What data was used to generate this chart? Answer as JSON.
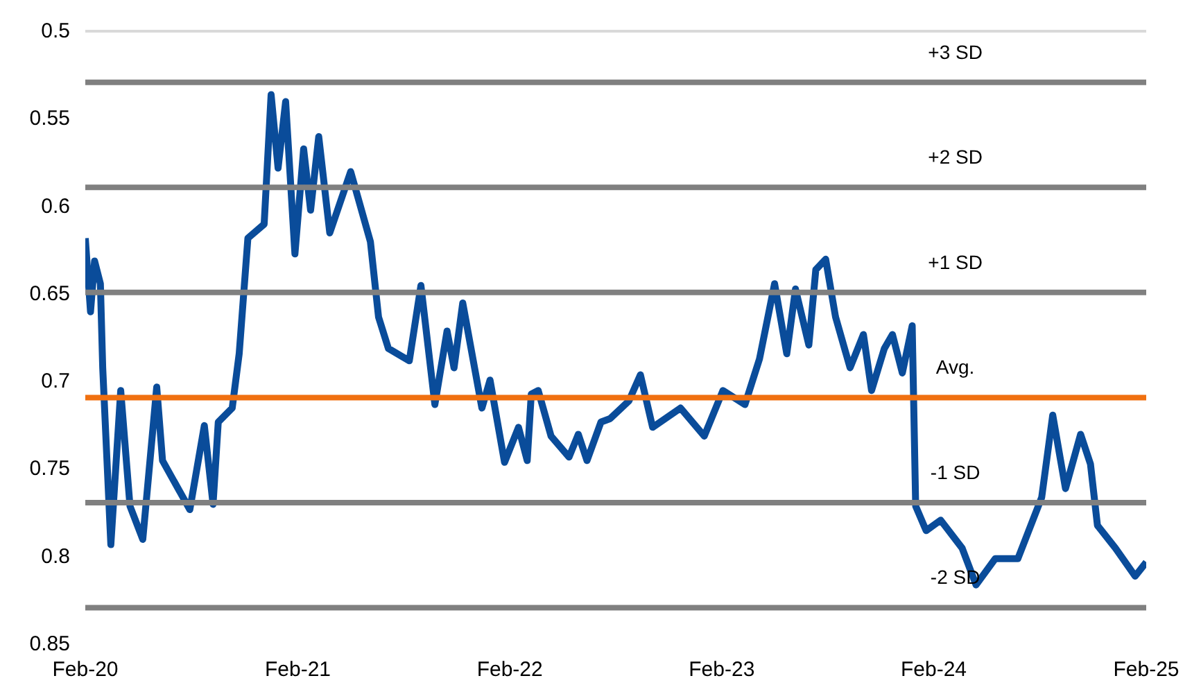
{
  "chart_data": {
    "type": "line",
    "x": [
      "2020-02-01",
      "2020-02-10",
      "2020-02-17",
      "2020-02-27",
      "2020-03-02",
      "2020-03-16",
      "2020-04-02",
      "2020-04-18",
      "2020-05-10",
      "2020-06-03",
      "2020-06-13",
      "2020-07-30",
      "2020-08-24",
      "2020-09-08",
      "2020-09-17",
      "2020-10-11",
      "2020-10-23",
      "2020-11-07",
      "2020-12-05",
      "2020-12-17",
      "2020-12-29",
      "2021-01-11",
      "2021-01-27",
      "2021-02-11",
      "2021-02-23",
      "2021-03-09",
      "2021-03-28",
      "2021-05-03",
      "2021-06-06",
      "2021-06-20",
      "2021-07-07",
      "2021-08-12",
      "2021-09-01",
      "2021-09-25",
      "2021-10-16",
      "2021-10-28",
      "2021-11-12",
      "2021-12-15",
      "2021-12-29",
      "2022-01-23",
      "2022-02-16",
      "2022-03-03",
      "2022-03-10",
      "2022-03-22",
      "2022-04-13",
      "2022-05-14",
      "2022-05-30",
      "2022-06-14",
      "2022-07-08",
      "2022-07-24",
      "2022-08-25",
      "2022-09-14",
      "2022-10-05",
      "2022-11-22",
      "2023-01-02",
      "2023-02-03",
      "2023-03-13",
      "2023-04-07",
      "2023-05-03",
      "2023-05-24",
      "2023-06-08",
      "2023-07-01",
      "2023-07-13",
      "2023-07-30",
      "2023-08-16",
      "2023-09-10",
      "2023-10-03",
      "2023-10-17",
      "2023-11-08",
      "2023-11-22",
      "2023-12-09",
      "2023-12-26",
      "2024-01-01",
      "2024-01-19",
      "2024-02-13",
      "2024-03-21",
      "2024-04-14",
      "2024-05-17",
      "2024-06-25",
      "2024-08-05",
      "2024-08-24",
      "2024-09-15",
      "2024-10-11",
      "2024-10-28",
      "2024-11-09",
      "2024-12-10",
      "2025-01-13",
      "2025-02-01"
    ],
    "series": [
      {
        "color": "#0a4c9a",
        "values": [
          0.619,
          0.661,
          0.632,
          0.645,
          0.693,
          0.794,
          0.706,
          0.772,
          0.791,
          0.704,
          0.746,
          0.774,
          0.726,
          0.771,
          0.724,
          0.716,
          0.685,
          0.619,
          0.611,
          0.537,
          0.579,
          0.541,
          0.628,
          0.568,
          0.603,
          0.561,
          0.616,
          0.581,
          0.621,
          0.664,
          0.682,
          0.689,
          0.646,
          0.714,
          0.672,
          0.693,
          0.656,
          0.716,
          0.7,
          0.747,
          0.727,
          0.746,
          0.708,
          0.706,
          0.732,
          0.744,
          0.731,
          0.746,
          0.724,
          0.722,
          0.712,
          0.697,
          0.727,
          0.716,
          0.732,
          0.706,
          0.714,
          0.688,
          0.645,
          0.685,
          0.648,
          0.68,
          0.637,
          0.631,
          0.664,
          0.693,
          0.674,
          0.706,
          0.682,
          0.674,
          0.696,
          0.669,
          0.772,
          0.786,
          0.78,
          0.796,
          0.817,
          0.802,
          0.802,
          0.767,
          0.72,
          0.762,
          0.731,
          0.748,
          0.783,
          0.796,
          0.812,
          0.804
        ]
      }
    ],
    "xlim": [
      "2020-02-01",
      "2025-02-01"
    ],
    "xticks": [
      {
        "value": "2020-02-01",
        "label": "Feb-20"
      },
      {
        "value": "2021-02-01",
        "label": "Feb-21"
      },
      {
        "value": "2022-02-01",
        "label": "Feb-22"
      },
      {
        "value": "2023-02-01",
        "label": "Feb-23"
      },
      {
        "value": "2024-02-01",
        "label": "Feb-24"
      },
      {
        "value": "2025-02-01",
        "label": "Feb-25"
      }
    ],
    "ylim": [
      0.85,
      0.5
    ],
    "yticks": [
      0.5,
      0.55,
      0.6,
      0.65,
      0.7,
      0.75,
      0.8,
      0.85
    ],
    "ref_lines": [
      {
        "axis": "y",
        "value": 0.5,
        "label": null,
        "color": "#d9d9d9"
      },
      {
        "axis": "y",
        "value": 0.53,
        "label": "+3 SD",
        "color": "#808080"
      },
      {
        "axis": "y",
        "value": 0.59,
        "label": "+2 SD",
        "color": "#808080"
      },
      {
        "axis": "y",
        "value": 0.65,
        "label": "+1 SD",
        "color": "#808080"
      },
      {
        "axis": "y",
        "value": 0.71,
        "label": "Avg.",
        "color": "#f07010"
      },
      {
        "axis": "y",
        "value": 0.77,
        "label": "-1 SD",
        "color": "#808080"
      },
      {
        "axis": "y",
        "value": 0.83,
        "label": "-2 SD",
        "color": "#808080"
      }
    ],
    "grid": false,
    "marker": "none",
    "line_style": "solid"
  }
}
